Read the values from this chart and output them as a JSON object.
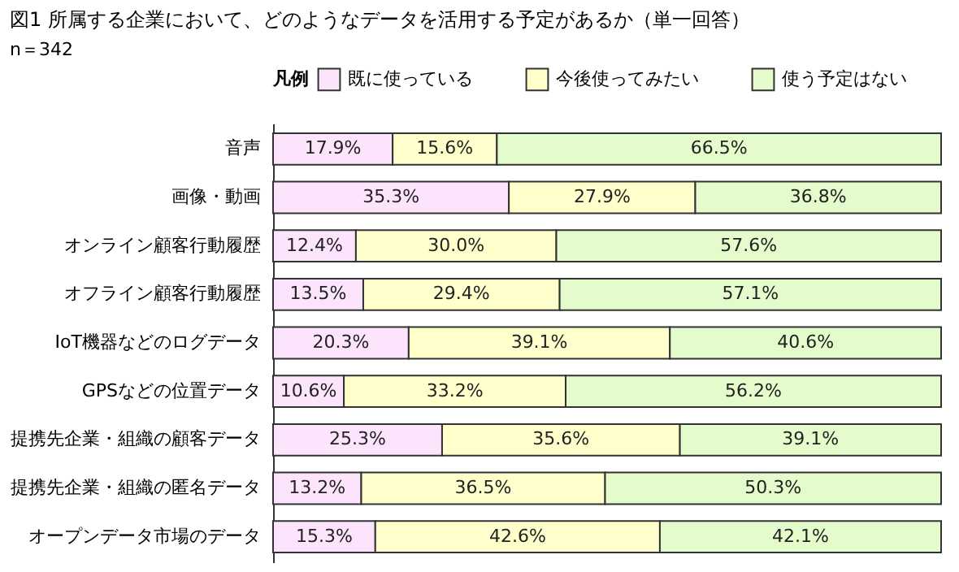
{
  "chart_data": {
    "type": "bar",
    "orientation": "horizontal",
    "stacked": true,
    "title": "図1 所属する企業において、どのようなデータを活用する予定があるか（単一回答）",
    "annotations": [
      "n＝342"
    ],
    "legend_title": "凡例",
    "legend": "top",
    "tick_labels": "y",
    "categories": [
      "音声",
      "画像・動画",
      "オンライン顧客行動履歴",
      "オフライン顧客行動履歴",
      "IoT機器などのログデータ",
      "GPSなどの位置データ",
      "提携先企業・組織の顧客データ",
      "提携先企業・組織の匿名データ",
      "オープンデータ市場のデータ"
    ],
    "series": [
      {
        "name": "既に使っている",
        "color": "#fce4fc",
        "values": [
          17.9,
          35.3,
          12.4,
          13.5,
          20.3,
          10.6,
          25.3,
          13.2,
          15.3
        ],
        "value_labels": [
          "17.9%",
          "35.3%",
          "12.4%",
          "13.5%",
          "20.3%",
          "10.6%",
          "25.3%",
          "13.2%",
          "15.3%"
        ]
      },
      {
        "name": "今後使ってみたい",
        "color": "#ffffcc",
        "values": [
          15.6,
          27.9,
          30.0,
          29.4,
          39.1,
          33.2,
          35.6,
          36.5,
          42.6
        ],
        "value_labels": [
          "15.6%",
          "27.9%",
          "30.0%",
          "29.4%",
          "39.1%",
          "33.2%",
          "35.6%",
          "36.5%",
          "42.6%"
        ]
      },
      {
        "name": "使う予定はない",
        "color": "#e4fccc",
        "values": [
          66.5,
          36.8,
          57.6,
          57.1,
          40.6,
          56.2,
          39.1,
          50.3,
          42.1
        ],
        "value_labels": [
          "66.5%",
          "36.8%",
          "57.6%",
          "57.1%",
          "40.6%",
          "56.2%",
          "39.1%",
          "50.3%",
          "42.1%"
        ]
      }
    ]
  }
}
